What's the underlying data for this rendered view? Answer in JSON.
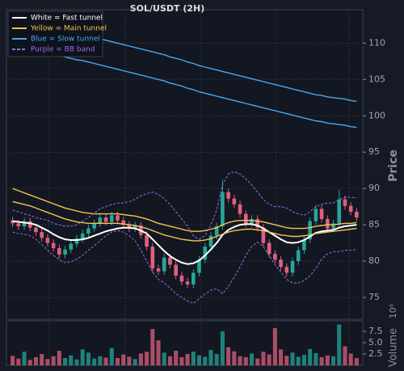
{
  "chart_data": {
    "type": "candlestick",
    "title": "SOL/USDT (2H)",
    "ylabel": "Price",
    "volume_label": "Volume",
    "volume_offset": "10⁶",
    "up_color": "#26a69a",
    "down_color": "#e0607e",
    "grid": true,
    "ylim": [
      72,
      114.6
    ],
    "yticks": [
      75,
      80,
      85,
      90,
      95,
      100,
      105,
      110
    ],
    "open": [
      85.6,
      85.2,
      84.8,
      85.5,
      84.6,
      84.0,
      83.2,
      82.5,
      81.8,
      80.9,
      81.6,
      82.4,
      83.1,
      83.8,
      84.5,
      85.2,
      86.0,
      85.4,
      86.3,
      85.6,
      85.0,
      84.5,
      84.9,
      83.6,
      82.0,
      79.0,
      78.6,
      80.5,
      79.5,
      78.0,
      77.2,
      76.8,
      78.4,
      80.2,
      82.0,
      83.5,
      84.8,
      89.5,
      88.6,
      87.8,
      86.5,
      85.2,
      85.8,
      84.6,
      82.5,
      81.0,
      80.2,
      79.2,
      78.4,
      80.0,
      81.5,
      83.0,
      85.5,
      87.2,
      85.8,
      84.5,
      85.2,
      88.5,
      87.6,
      86.8
    ],
    "high": [
      86.1,
      85.7,
      86.0,
      86.0,
      85.1,
      84.5,
      83.7,
      83.0,
      82.3,
      82.1,
      82.9,
      83.6,
      84.3,
      85.0,
      85.7,
      86.5,
      86.5,
      86.8,
      86.8,
      86.1,
      85.5,
      85.4,
      85.4,
      84.1,
      82.5,
      79.5,
      81.0,
      81.0,
      80.0,
      78.5,
      77.7,
      78.9,
      80.7,
      82.5,
      84.0,
      85.3,
      91.2,
      90.0,
      89.1,
      88.3,
      87.0,
      86.3,
      86.3,
      85.1,
      83.0,
      81.5,
      80.7,
      79.7,
      80.5,
      82.0,
      83.5,
      86.0,
      87.7,
      87.7,
      86.3,
      85.7,
      89.8,
      89.0,
      88.1,
      87.3
    ],
    "low": [
      84.7,
      84.3,
      84.3,
      84.1,
      83.5,
      82.7,
      82.0,
      81.3,
      80.4,
      80.4,
      81.1,
      81.9,
      82.6,
      83.3,
      84.0,
      84.7,
      84.9,
      84.9,
      85.1,
      84.5,
      84.0,
      84.0,
      83.1,
      81.5,
      78.5,
      78.1,
      78.1,
      79.0,
      77.5,
      76.7,
      76.3,
      76.3,
      77.9,
      79.7,
      81.5,
      83.0,
      84.3,
      88.1,
      87.3,
      86.0,
      84.7,
      84.7,
      84.1,
      82.0,
      80.5,
      79.7,
      78.7,
      77.9,
      77.9,
      79.5,
      81.0,
      82.5,
      85.0,
      85.3,
      84.0,
      84.0,
      84.7,
      87.1,
      86.3,
      85.5
    ],
    "close": [
      85.2,
      84.8,
      85.5,
      84.6,
      84.0,
      83.2,
      82.5,
      81.8,
      80.9,
      81.6,
      82.4,
      83.1,
      83.8,
      84.5,
      85.2,
      86.0,
      85.4,
      86.3,
      85.6,
      85.0,
      84.5,
      84.9,
      83.6,
      82.0,
      79.0,
      78.6,
      80.5,
      79.5,
      78.0,
      77.2,
      76.8,
      78.4,
      80.2,
      82.0,
      83.5,
      84.8,
      89.5,
      88.6,
      87.8,
      86.5,
      85.2,
      85.8,
      84.6,
      82.5,
      81.0,
      80.2,
      79.2,
      78.4,
      80.0,
      81.5,
      83.0,
      85.5,
      87.2,
      85.8,
      84.5,
      85.2,
      88.5,
      87.6,
      86.8,
      86.0
    ],
    "series": [
      {
        "name": "White = Fast tunnel",
        "color": "#ffffff",
        "width": 2,
        "lines": [
          [
            85.5,
            85.4,
            85.3,
            85.2,
            85.0,
            84.6,
            84.2,
            83.7,
            83.3,
            83.0,
            82.9,
            82.9,
            83.0,
            83.2,
            83.5,
            83.8,
            84.1,
            84.3,
            84.5,
            84.6,
            84.6,
            84.5,
            84.2,
            83.8,
            83.0,
            82.2,
            81.4,
            80.7,
            80.2,
            79.8,
            79.6,
            79.7,
            80.1,
            80.8,
            81.6,
            82.5,
            83.6,
            84.3,
            84.7,
            85.0,
            85.1,
            85.1,
            84.9,
            84.5,
            84.0,
            83.5,
            83.0,
            82.6,
            82.5,
            82.6,
            82.9,
            83.4,
            83.9,
            84.1,
            84.2,
            84.3,
            84.6,
            84.8,
            84.9,
            85.0
          ]
        ]
      },
      {
        "name": "Yellow = Main tunnel",
        "color": "#f5c451",
        "width": 1.4,
        "lines": [
          [
            90.0,
            89.7,
            89.4,
            89.1,
            88.8,
            88.5,
            88.2,
            87.9,
            87.6,
            87.3,
            87.1,
            86.9,
            86.7,
            86.6,
            86.5,
            86.5,
            86.5,
            86.5,
            86.5,
            86.4,
            86.3,
            86.2,
            86.0,
            85.8,
            85.5,
            85.2,
            85.0,
            84.8,
            84.6,
            84.4,
            84.2,
            84.1,
            84.1,
            84.2,
            84.4,
            84.6,
            85.0,
            85.3,
            85.5,
            85.6,
            85.6,
            85.6,
            85.5,
            85.4,
            85.2,
            85.0,
            84.8,
            84.6,
            84.5,
            84.5,
            84.5,
            84.6,
            84.8,
            84.9,
            85.0,
            85.0,
            85.1,
            85.2,
            85.2,
            85.3
          ],
          [
            88.2,
            88.0,
            87.8,
            87.6,
            87.3,
            87.0,
            86.7,
            86.4,
            86.1,
            85.8,
            85.6,
            85.4,
            85.3,
            85.2,
            85.2,
            85.2,
            85.2,
            85.2,
            85.2,
            85.1,
            85.0,
            84.9,
            84.7,
            84.5,
            84.2,
            83.9,
            83.6,
            83.4,
            83.2,
            83.0,
            82.9,
            82.8,
            82.8,
            82.9,
            83.1,
            83.4,
            83.7,
            84.0,
            84.2,
            84.3,
            84.4,
            84.4,
            84.3,
            84.2,
            84.0,
            83.8,
            83.6,
            83.5,
            83.4,
            83.4,
            83.5,
            83.6,
            83.8,
            83.9,
            84.0,
            84.1,
            84.2,
            84.3,
            84.4,
            84.5
          ]
        ]
      },
      {
        "name": "Blue = Slow tunnel",
        "color": "#4aa8ef",
        "width": 1.4,
        "lines": [
          [
            113.5,
            113.3,
            113.1,
            112.9,
            112.7,
            112.5,
            112.3,
            112.1,
            111.9,
            111.7,
            111.5,
            111.3,
            111.2,
            111.0,
            110.8,
            110.6,
            110.4,
            110.2,
            110.0,
            109.8,
            109.6,
            109.4,
            109.2,
            109.0,
            108.8,
            108.6,
            108.4,
            108.1,
            107.9,
            107.7,
            107.4,
            107.2,
            106.9,
            106.7,
            106.5,
            106.3,
            106.1,
            105.9,
            105.7,
            105.5,
            105.3,
            105.1,
            104.9,
            104.7,
            104.5,
            104.3,
            104.1,
            103.9,
            103.7,
            103.5,
            103.3,
            103.1,
            102.9,
            102.8,
            102.6,
            102.5,
            102.4,
            102.3,
            102.1,
            102.0
          ],
          [
            109.9,
            109.7,
            109.5,
            109.3,
            109.1,
            108.9,
            108.7,
            108.5,
            108.3,
            108.1,
            107.9,
            107.7,
            107.6,
            107.4,
            107.2,
            107.0,
            106.8,
            106.6,
            106.4,
            106.2,
            106.0,
            105.8,
            105.6,
            105.4,
            105.2,
            105.0,
            104.8,
            104.5,
            104.3,
            104.1,
            103.8,
            103.6,
            103.3,
            103.1,
            102.9,
            102.7,
            102.5,
            102.3,
            102.1,
            101.9,
            101.7,
            101.5,
            101.3,
            101.1,
            100.9,
            100.7,
            100.5,
            100.3,
            100.1,
            99.9,
            99.7,
            99.5,
            99.3,
            99.2,
            99.0,
            98.9,
            98.8,
            98.7,
            98.5,
            98.4
          ]
        ]
      },
      {
        "name": "Purple = BB band",
        "color": "#9a6cf0",
        "width": 1,
        "dashed": true,
        "lines": [
          [
            87.0,
            86.8,
            86.5,
            86.3,
            86.0,
            85.8,
            85.6,
            85.2,
            85.0,
            84.8,
            84.8,
            85.0,
            85.5,
            86.0,
            86.6,
            87.2,
            87.5,
            87.8,
            88.0,
            88.0,
            88.2,
            88.5,
            89.0,
            89.3,
            89.5,
            89.2,
            88.6,
            87.8,
            86.8,
            85.8,
            84.8,
            83.5,
            83.0,
            83.5,
            85.0,
            87.0,
            90.5,
            92.0,
            92.3,
            92.0,
            91.3,
            90.5,
            89.5,
            88.5,
            87.8,
            87.5,
            87.5,
            87.3,
            86.8,
            86.5,
            86.3,
            86.8,
            87.5,
            87.8,
            88.0,
            88.0,
            88.5,
            88.8,
            88.8,
            88.7
          ],
          [
            84.0,
            83.8,
            83.7,
            83.5,
            83.0,
            82.3,
            81.5,
            80.8,
            80.2,
            79.8,
            79.9,
            80.3,
            80.8,
            81.5,
            82.1,
            82.8,
            83.5,
            84.0,
            84.2,
            84.0,
            83.5,
            82.8,
            81.5,
            80.0,
            78.5,
            77.5,
            77.0,
            76.3,
            75.5,
            75.0,
            74.5,
            74.2,
            74.8,
            75.5,
            76.0,
            76.2,
            75.5,
            76.5,
            77.8,
            79.2,
            80.8,
            82.0,
            82.6,
            82.0,
            80.8,
            79.5,
            78.5,
            77.5,
            77.0,
            77.0,
            77.3,
            78.0,
            79.0,
            80.3,
            81.0,
            81.3,
            81.3,
            81.5,
            81.5,
            81.6
          ]
        ]
      }
    ],
    "volume": {
      "ylim": [
        0,
        9.8
      ],
      "yticks": [
        {
          "value": 2.5,
          "label": "2.5"
        },
        {
          "value": 5,
          "label": "5.0"
        },
        {
          "value": 7.5,
          "label": "7.5"
        }
      ],
      "values": [
        2.1,
        1.5,
        3.0,
        1.2,
        1.8,
        2.5,
        1.4,
        2.0,
        3.2,
        1.6,
        2.2,
        1.3,
        3.5,
        2.8,
        1.5,
        2.0,
        1.7,
        3.8,
        1.6,
        2.4,
        1.9,
        1.4,
        2.6,
        3.0,
        8.0,
        5.5,
        2.8,
        2.0,
        3.2,
        1.8,
        2.5,
        3.0,
        2.2,
        1.9,
        3.4,
        2.5,
        7.5,
        4.0,
        3.1,
        2.0,
        1.8,
        2.6,
        1.5,
        3.0,
        2.4,
        8.2,
        3.5,
        2.1,
        2.8,
        1.9,
        2.3,
        3.6,
        2.7,
        1.8,
        2.2,
        2.0,
        9.0,
        4.2,
        2.6,
        1.6
      ]
    }
  }
}
